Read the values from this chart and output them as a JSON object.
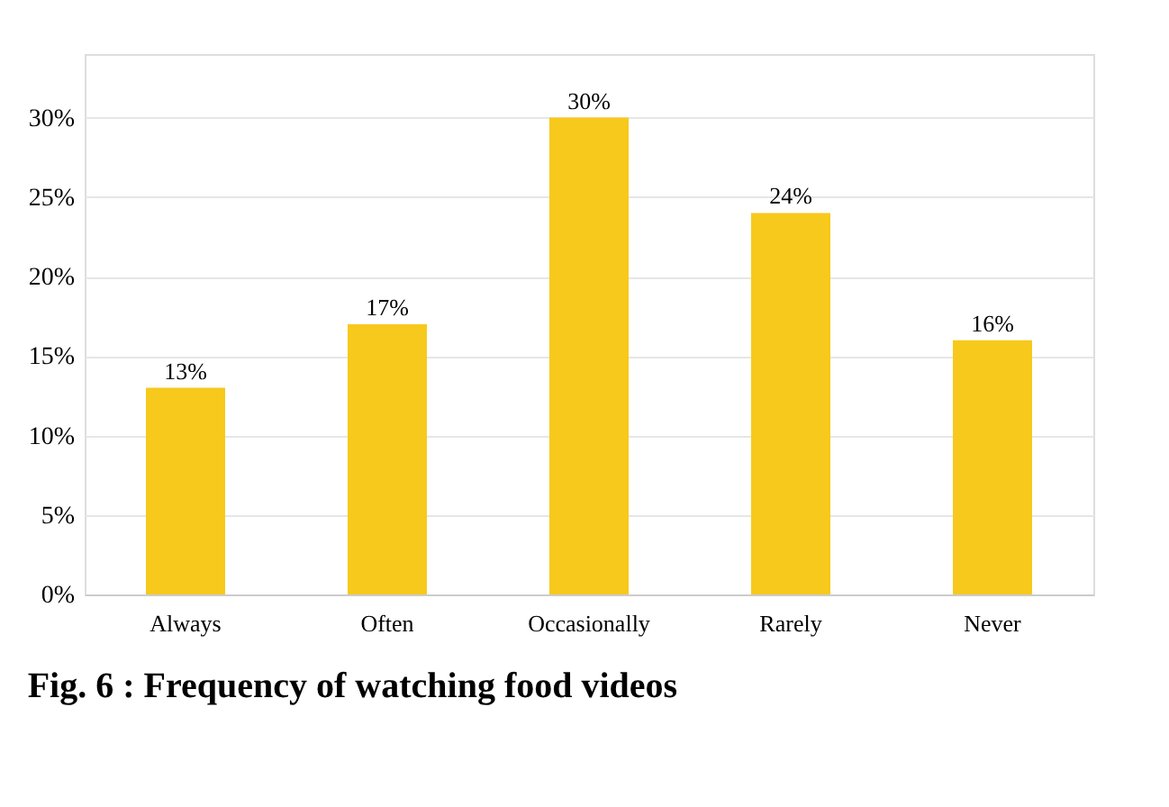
{
  "chart_data": {
    "type": "bar",
    "title": "Fig. 6 :    Frequency of watching food videos",
    "categories": [
      "Always",
      "Often",
      "Occasionally",
      "Rarely",
      "Never"
    ],
    "values": [
      13,
      17,
      30,
      24,
      16
    ],
    "value_labels": [
      "13%",
      "17%",
      "30%",
      "24%",
      "16%"
    ],
    "color": "#f7c91c",
    "ylim": [
      0,
      34
    ],
    "yticks": [
      {
        "value": 0,
        "label": "0%"
      },
      {
        "value": 5,
        "label": "5%"
      },
      {
        "value": 10,
        "label": "10%"
      },
      {
        "value": 15,
        "label": "15%"
      },
      {
        "value": 20,
        "label": "20%"
      },
      {
        "value": 25,
        "label": "25%"
      },
      {
        "value": 30,
        "label": "30%"
      }
    ],
    "grid": "y"
  }
}
